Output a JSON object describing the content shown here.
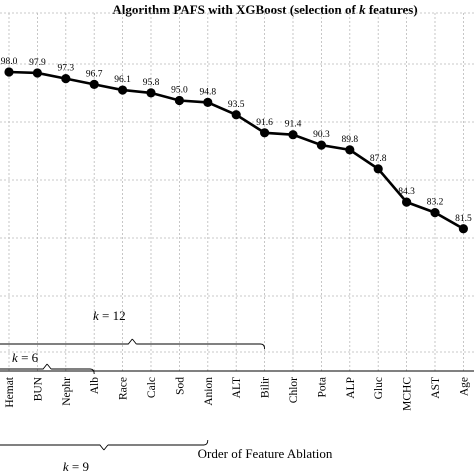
{
  "chart_data": {
    "type": "line",
    "title_prefix": "Algorithm PAFS with XGBoost (selection of ",
    "title_var": "k",
    "title_suffix": " features)",
    "xlabel": "Order of Feature Ablation",
    "ylabel": "",
    "categories": [
      "Hemat",
      "BUN",
      "Nephr",
      "Alb",
      "Race",
      "Calc",
      "Sod",
      "Anion",
      "ALT",
      "Bilir",
      "Chlor",
      "Pota",
      "ALP",
      "Gluc",
      "MCHC",
      "AST",
      "Age"
    ],
    "series": [
      {
        "values": [
          98.0,
          97.9,
          97.3,
          96.7,
          96.1,
          95.8,
          95.0,
          94.8,
          93.5,
          91.6,
          91.4,
          90.3,
          89.8,
          87.8,
          84.3,
          83.2,
          81.5
        ]
      }
    ],
    "value_labels": [
      "98.0",
      "97.9",
      "97.3",
      "96.7",
      "96.1",
      "95.8",
      "95.0",
      "94.8",
      "93.5",
      "91.6",
      "91.4",
      "90.3",
      "89.8",
      "87.8",
      "84.3",
      "83.2",
      "81.5"
    ],
    "brackets": [
      {
        "var": "k",
        "eq": " = 12",
        "end_category": "Bilir"
      },
      {
        "var": "k",
        "eq": " = 6",
        "end_category": "Alb"
      },
      {
        "var": "k",
        "eq": " = 9",
        "end_category": "Anion"
      }
    ],
    "grid": true
  }
}
